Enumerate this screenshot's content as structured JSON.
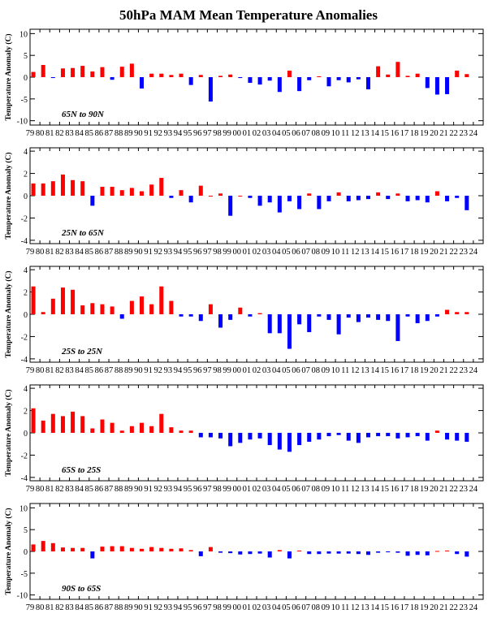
{
  "page": {
    "title": "50hPa MAM Mean Temperature Anomalies"
  },
  "colors": {
    "positive": "#ff0000",
    "negative": "#0000ff",
    "axis": "#000000"
  },
  "chart_data": [
    {
      "type": "bar",
      "region": "65N to 90N",
      "ylabel": "Temperature Anomaly (C)",
      "ylim": [
        -11,
        11
      ],
      "yticks": [
        10,
        5,
        0,
        -5,
        -10
      ],
      "categories": [
        "79",
        "80",
        "81",
        "82",
        "83",
        "84",
        "85",
        "86",
        "87",
        "88",
        "89",
        "90",
        "91",
        "92",
        "93",
        "94",
        "95",
        "96",
        "97",
        "98",
        "99",
        "00",
        "01",
        "02",
        "03",
        "04",
        "05",
        "06",
        "07",
        "08",
        "09",
        "10",
        "11",
        "12",
        "13",
        "14",
        "15",
        "16",
        "17",
        "18",
        "19",
        "20",
        "21",
        "22",
        "23",
        "24"
      ],
      "values": [
        1.2,
        2.8,
        -0.2,
        2.0,
        2.1,
        2.6,
        1.3,
        2.3,
        -0.6,
        2.4,
        3.1,
        -2.6,
        0.8,
        0.8,
        0.5,
        0.8,
        -1.8,
        0.5,
        -5.6,
        0.3,
        0.6,
        -0.2,
        -1.3,
        -1.7,
        -0.8,
        -3.4,
        1.5,
        -3.2,
        -0.7,
        0.2,
        -2.1,
        -0.7,
        -1.2,
        -0.5,
        -2.8,
        2.5,
        0.6,
        3.5,
        0.3,
        0.8,
        -2.5,
        -4.0,
        -3.9,
        1.5,
        0.7,
        null
      ]
    },
    {
      "type": "bar",
      "region": "25N to 65N",
      "ylabel": "Temperature Anomaly (C)",
      "ylim": [
        -4.3,
        4.3
      ],
      "yticks": [
        4,
        2,
        0,
        -2,
        -4
      ],
      "categories": [
        "79",
        "80",
        "81",
        "82",
        "83",
        "84",
        "85",
        "86",
        "87",
        "88",
        "89",
        "90",
        "91",
        "92",
        "93",
        "94",
        "95",
        "96",
        "97",
        "98",
        "99",
        "00",
        "01",
        "02",
        "03",
        "04",
        "05",
        "06",
        "07",
        "08",
        "09",
        "10",
        "11",
        "12",
        "13",
        "14",
        "15",
        "16",
        "17",
        "18",
        "19",
        "20",
        "21",
        "22",
        "23",
        "24"
      ],
      "values": [
        1.1,
        1.1,
        1.3,
        1.9,
        1.4,
        1.3,
        -0.9,
        0.8,
        0.8,
        0.5,
        0.7,
        0.4,
        1.0,
        1.6,
        -0.2,
        0.5,
        -0.6,
        0.9,
        0.0,
        0.2,
        -1.8,
        0.0,
        -0.2,
        -0.9,
        -0.6,
        -1.5,
        -0.5,
        -1.2,
        0.2,
        -1.2,
        -0.5,
        0.3,
        -0.5,
        -0.4,
        -0.3,
        0.3,
        -0.3,
        0.2,
        -0.5,
        -0.4,
        -0.6,
        0.4,
        -0.5,
        -0.2,
        -1.3,
        null
      ]
    },
    {
      "type": "bar",
      "region": "25S to 25N",
      "ylabel": "Temperature Anomaly (C)",
      "ylim": [
        -4.3,
        4.3
      ],
      "yticks": [
        4,
        2,
        0,
        -2,
        -4
      ],
      "categories": [
        "79",
        "80",
        "81",
        "82",
        "83",
        "84",
        "85",
        "86",
        "87",
        "88",
        "89",
        "90",
        "91",
        "92",
        "93",
        "94",
        "95",
        "96",
        "97",
        "98",
        "99",
        "00",
        "01",
        "02",
        "03",
        "04",
        "05",
        "06",
        "07",
        "08",
        "09",
        "10",
        "11",
        "12",
        "13",
        "14",
        "15",
        "16",
        "17",
        "18",
        "19",
        "20",
        "21",
        "22",
        "23",
        "24"
      ],
      "values": [
        2.5,
        0.2,
        1.4,
        2.4,
        2.2,
        0.8,
        1.0,
        0.9,
        0.7,
        -0.4,
        1.2,
        1.6,
        0.9,
        2.5,
        1.2,
        -0.2,
        -0.2,
        -0.6,
        0.9,
        -1.2,
        -0.5,
        0.6,
        -0.2,
        0.1,
        -1.7,
        -1.7,
        -3.1,
        -0.9,
        -1.6,
        -0.2,
        -0.5,
        -1.8,
        -0.3,
        -0.7,
        -0.3,
        -0.5,
        -0.6,
        -2.4,
        -0.2,
        -0.8,
        -0.6,
        -0.2,
        0.4,
        0.2,
        0.2,
        null
      ]
    },
    {
      "type": "bar",
      "region": "65S to 25S",
      "ylabel": "Temperature Anomaly (C)",
      "ylim": [
        -4.3,
        4.3
      ],
      "yticks": [
        4,
        2,
        0,
        -2,
        -4
      ],
      "categories": [
        "79",
        "80",
        "81",
        "82",
        "83",
        "84",
        "85",
        "86",
        "87",
        "88",
        "89",
        "90",
        "91",
        "92",
        "93",
        "94",
        "95",
        "96",
        "97",
        "98",
        "99",
        "00",
        "01",
        "02",
        "03",
        "04",
        "05",
        "06",
        "07",
        "08",
        "09",
        "10",
        "11",
        "12",
        "13",
        "14",
        "15",
        "16",
        "17",
        "18",
        "19",
        "20",
        "21",
        "22",
        "23",
        "24"
      ],
      "values": [
        2.2,
        1.1,
        1.7,
        1.5,
        1.9,
        1.5,
        0.4,
        1.2,
        0.9,
        0.2,
        0.6,
        0.9,
        0.6,
        1.7,
        0.5,
        0.2,
        0.2,
        -0.4,
        -0.4,
        -0.5,
        -1.2,
        -0.9,
        -0.6,
        -0.5,
        -1.1,
        -1.5,
        -1.7,
        -1.1,
        -0.8,
        -0.6,
        -0.3,
        -0.2,
        -0.7,
        -0.9,
        -0.4,
        -0.3,
        -0.3,
        -0.5,
        -0.4,
        -0.3,
        -0.7,
        0.2,
        -0.6,
        -0.7,
        -0.8,
        null
      ]
    },
    {
      "type": "bar",
      "region": "90S to 65S",
      "ylabel": "Temperature Anomaly (C)",
      "ylim": [
        -11,
        11
      ],
      "yticks": [
        10,
        5,
        0,
        -5,
        -10
      ],
      "categories": [
        "79",
        "80",
        "81",
        "82",
        "83",
        "84",
        "85",
        "86",
        "87",
        "88",
        "89",
        "90",
        "91",
        "92",
        "93",
        "94",
        "95",
        "96",
        "97",
        "98",
        "99",
        "00",
        "01",
        "02",
        "03",
        "04",
        "05",
        "06",
        "07",
        "08",
        "09",
        "10",
        "11",
        "12",
        "13",
        "14",
        "15",
        "16",
        "17",
        "18",
        "19",
        "20",
        "21",
        "22",
        "23",
        "24"
      ],
      "values": [
        1.6,
        2.4,
        1.9,
        0.9,
        0.8,
        0.8,
        -1.6,
        1.1,
        1.2,
        1.2,
        0.8,
        0.6,
        1.0,
        0.8,
        0.6,
        0.7,
        0.3,
        -1.1,
        1.0,
        -0.3,
        -0.4,
        -0.7,
        -0.6,
        -0.5,
        -1.4,
        0.3,
        -1.6,
        0.2,
        -0.6,
        -0.6,
        -0.5,
        -0.5,
        -0.5,
        -0.6,
        -0.8,
        -0.3,
        -0.2,
        -0.3,
        -1.0,
        -0.8,
        -0.9,
        0.1,
        0.2,
        -0.6,
        -1.2,
        null
      ]
    }
  ]
}
